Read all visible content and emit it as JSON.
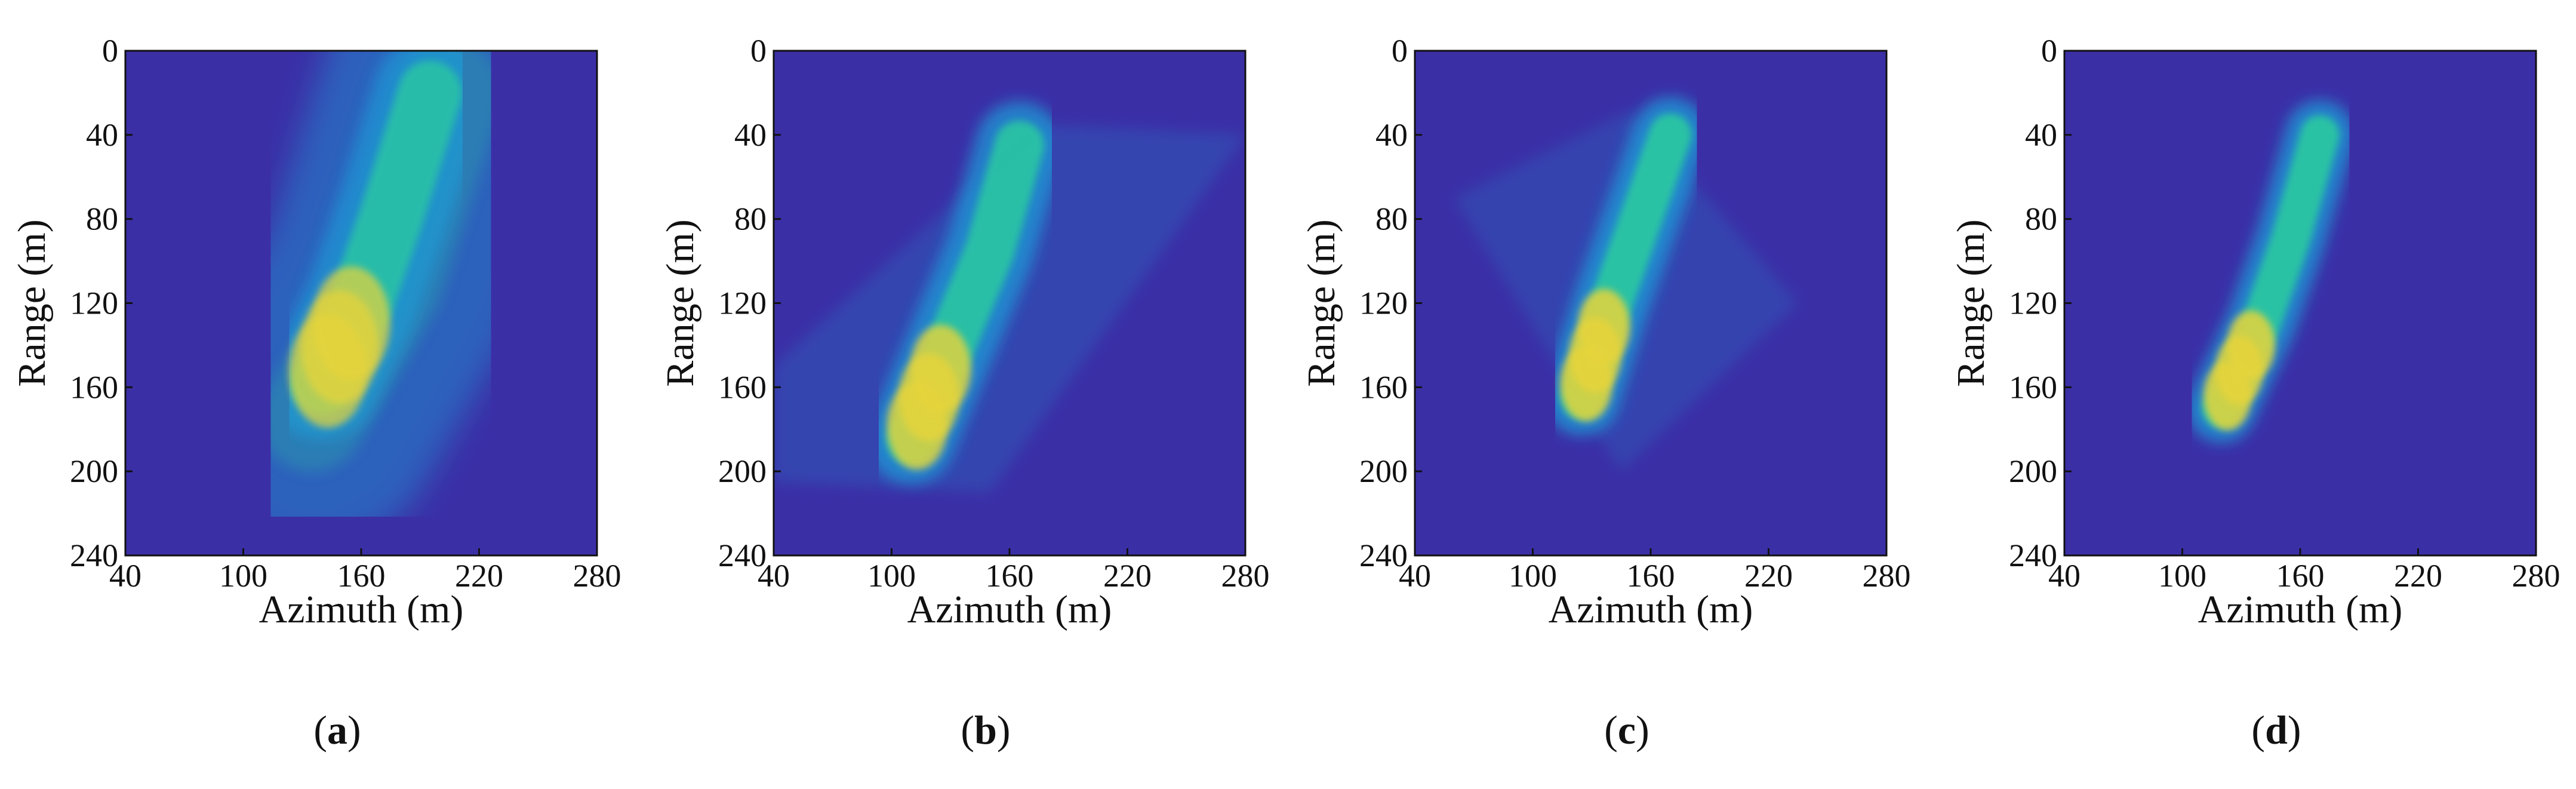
{
  "colors": {
    "background": "#3b2fa6",
    "mid": "#1f9ed8",
    "high": "#2ac9a0",
    "peak": "#e7d43a",
    "frame": "#111111"
  },
  "chart_data": [
    {
      "type": "heatmap",
      "panel": "a",
      "caption_letter": "a",
      "xlabel": "Azimuth (m)",
      "ylabel": "Range (m)",
      "xlim": [
        40,
        280
      ],
      "ylim": [
        0,
        240
      ],
      "xticks": [
        40,
        100,
        160,
        220,
        280
      ],
      "yticks": [
        0,
        40,
        80,
        120,
        160,
        200,
        240
      ],
      "description": "Blurred SAR image: broad slanted smear with bright streak from about (140,160) to (200,20)",
      "features": [
        {
          "kind": "smear",
          "points": [
            [
              135,
              175
            ],
            [
              175,
              110
            ],
            [
              205,
              20
            ]
          ],
          "intensity": 0.45,
          "width": 60
        },
        {
          "kind": "streak",
          "points": [
            [
              140,
              158
            ],
            [
              160,
              120
            ],
            [
              175,
              80
            ],
            [
              195,
              20
            ]
          ],
          "intensity": 0.85,
          "width": 18
        }
      ]
    },
    {
      "type": "heatmap",
      "panel": "b",
      "caption_letter": "b",
      "xlabel": "Azimuth (m)",
      "ylabel": "Range (m)",
      "xlim": [
        40,
        280
      ],
      "ylim": [
        0,
        240
      ],
      "xticks": [
        40,
        100,
        160,
        220,
        280
      ],
      "yticks": [
        0,
        40,
        80,
        120,
        160,
        200,
        240
      ],
      "description": "Partially focused: slanted parallelogram region with bright target streak from (110,185) to (165,45)",
      "features": [
        {
          "kind": "parallelogram",
          "points": [
            [
              40,
              150
            ],
            [
              175,
              35
            ],
            [
              280,
              40
            ],
            [
              150,
              210
            ],
            [
              40,
              205
            ]
          ],
          "intensity": 0.2
        },
        {
          "kind": "streak",
          "points": [
            [
              110,
              185
            ],
            [
              130,
              140
            ],
            [
              150,
              95
            ],
            [
              165,
              45
            ]
          ],
          "intensity": 0.95,
          "width": 14
        }
      ]
    },
    {
      "type": "heatmap",
      "panel": "c",
      "caption_letter": "c",
      "xlabel": "Azimuth (m)",
      "ylabel": "Range (m)",
      "xlim": [
        40,
        280
      ],
      "ylim": [
        0,
        240
      ],
      "xticks": [
        40,
        100,
        160,
        220,
        280
      ],
      "yticks": [
        0,
        40,
        80,
        120,
        160,
        200,
        240
      ],
      "description": "Rotated square region with focused target streak from (125,165) to (170,40)",
      "features": [
        {
          "kind": "diamond",
          "points": [
            [
              60,
              70
            ],
            [
              150,
              28
            ],
            [
              235,
              120
            ],
            [
              145,
              200
            ]
          ],
          "intensity": 0.18
        },
        {
          "kind": "streak",
          "points": [
            [
              125,
              165
            ],
            [
              140,
              120
            ],
            [
              155,
              80
            ],
            [
              170,
              40
            ]
          ],
          "intensity": 1.0,
          "width": 12
        }
      ]
    },
    {
      "type": "heatmap",
      "panel": "d",
      "caption_letter": "d",
      "xlabel": "Azimuth (m)",
      "ylabel": "Range (m)",
      "xlim": [
        40,
        280
      ],
      "ylim": [
        0,
        240
      ],
      "xticks": [
        40,
        100,
        160,
        220,
        280
      ],
      "yticks": [
        0,
        40,
        80,
        120,
        160,
        200,
        240
      ],
      "description": "Clean focused image: isolated target streak from (120,170) to (170,40) on uniform background",
      "features": [
        {
          "kind": "streak",
          "points": [
            [
              120,
              170
            ],
            [
              140,
              130
            ],
            [
              155,
              90
            ],
            [
              170,
              40
            ]
          ],
          "intensity": 1.0,
          "width": 11
        }
      ]
    }
  ]
}
